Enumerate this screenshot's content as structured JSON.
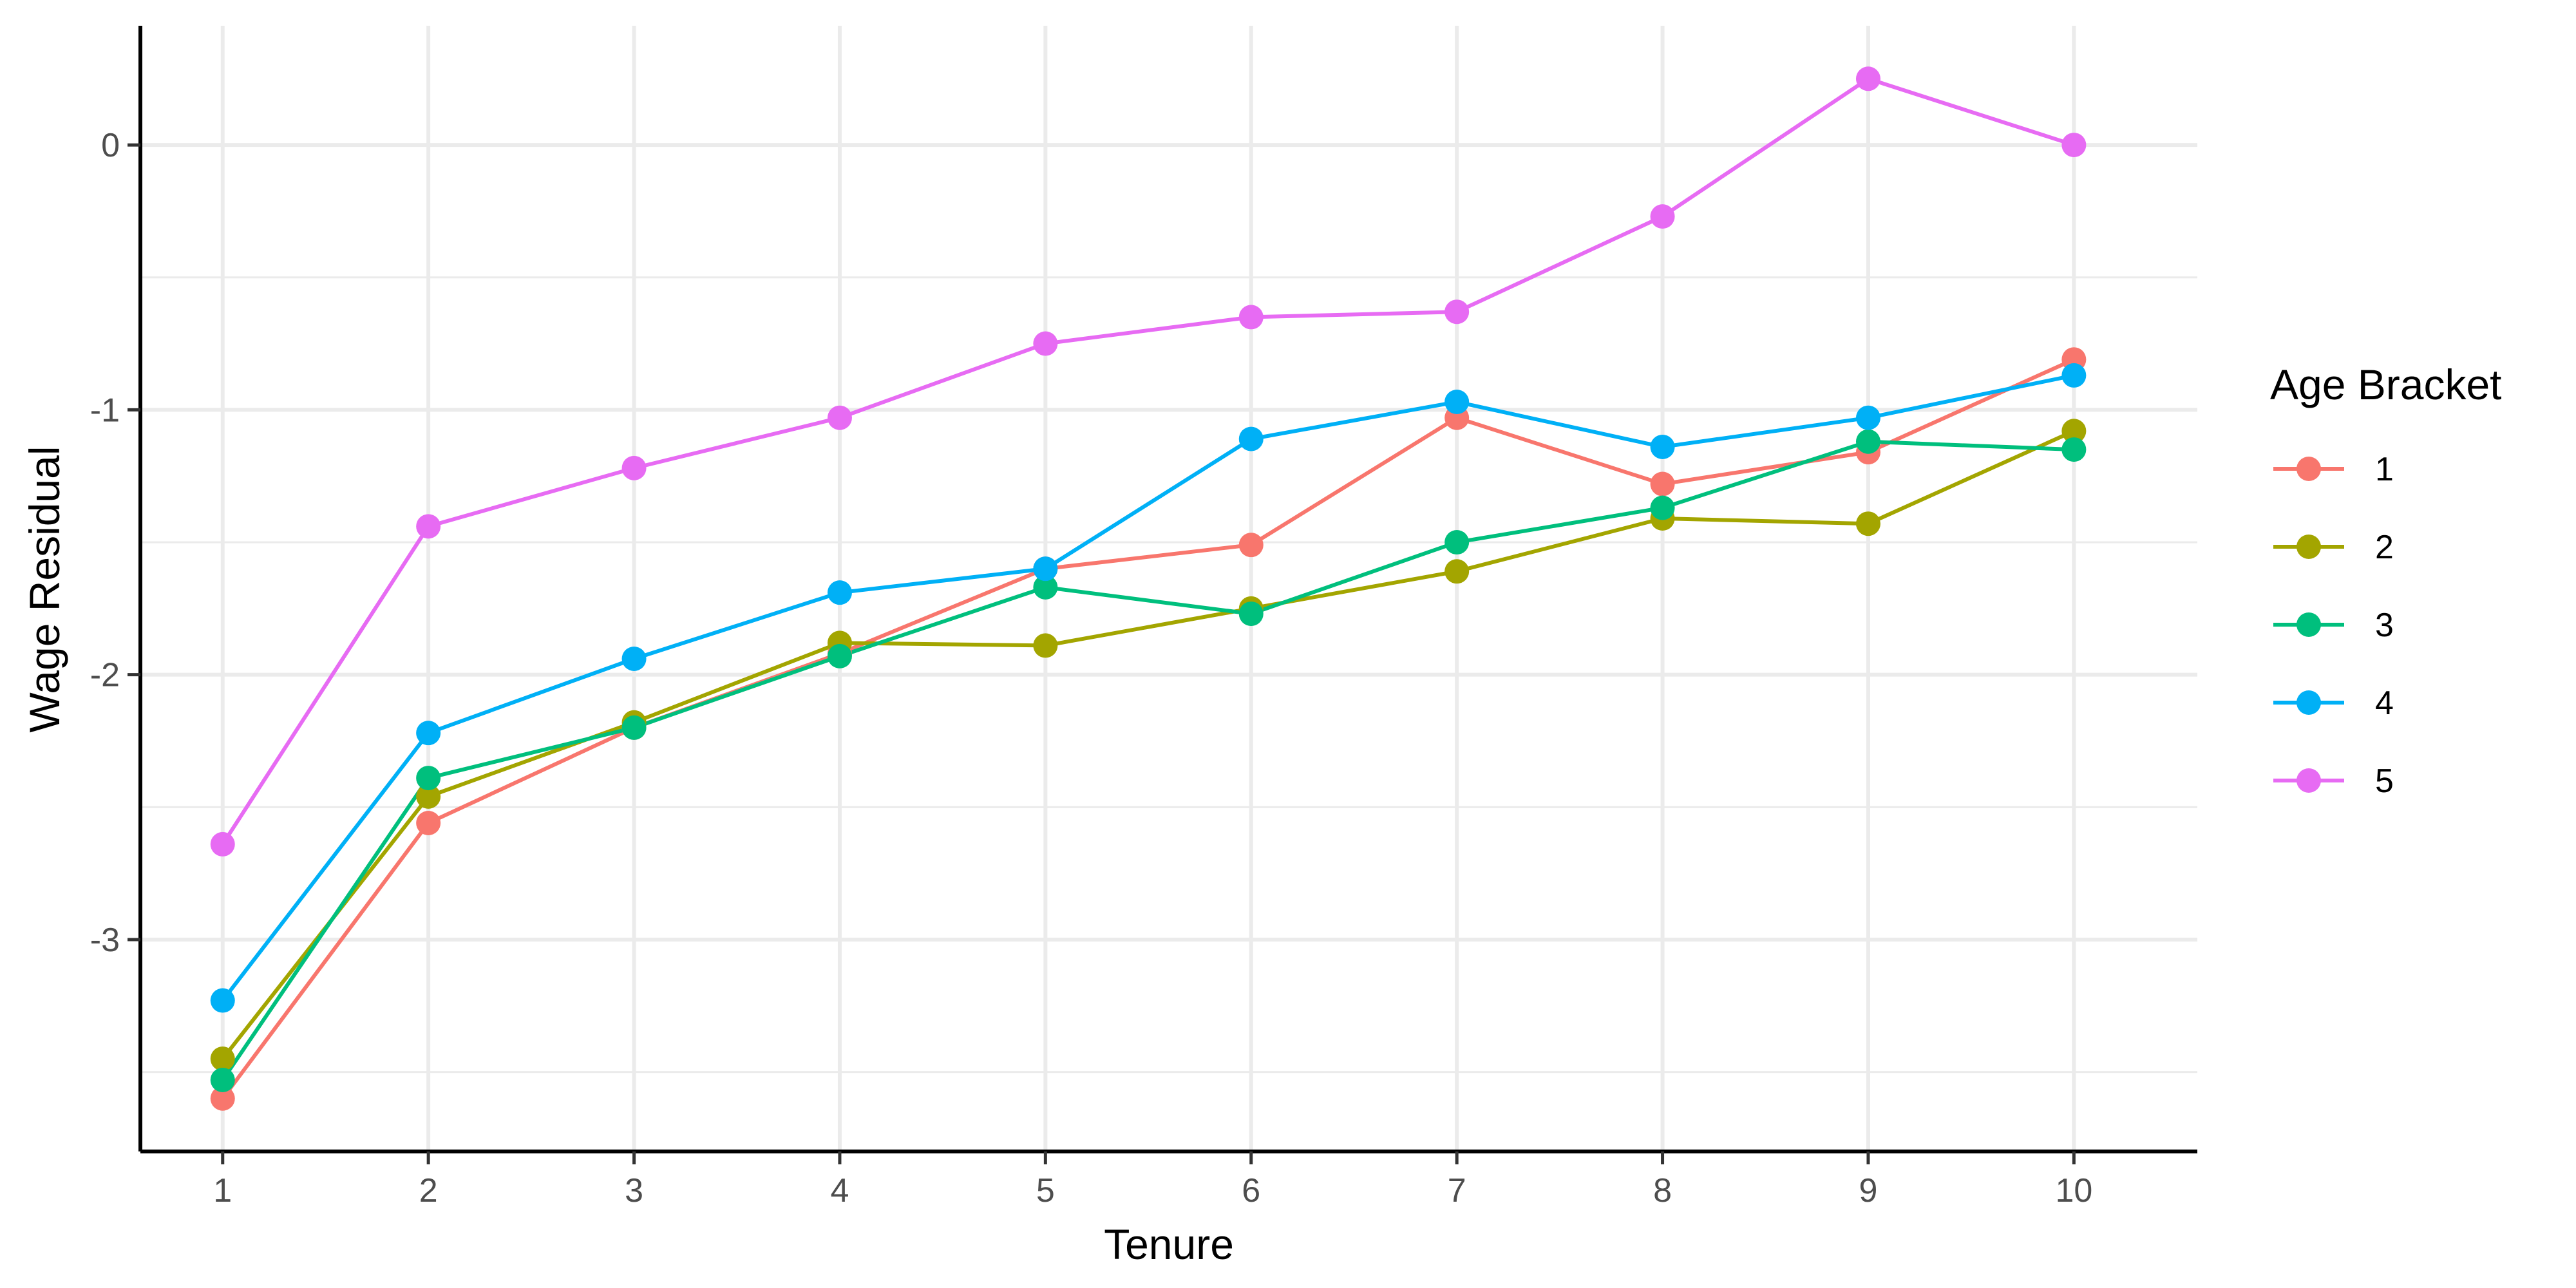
{
  "chart_data": {
    "type": "line",
    "xlabel": "Tenure",
    "ylabel": "Wage Residual",
    "x": [
      1,
      2,
      3,
      4,
      5,
      6,
      7,
      8,
      9,
      10
    ],
    "xlim": [
      0.6,
      10.6
    ],
    "ylim": [
      -3.8,
      0.45
    ],
    "x_ticks": [
      1,
      2,
      3,
      4,
      5,
      6,
      7,
      8,
      9,
      10
    ],
    "y_ticks": [
      -3,
      -2,
      -1,
      0
    ],
    "y_tick_labels": [
      "-3",
      "-2",
      "-1",
      "0"
    ],
    "y_minor_ticks": [
      -3.5,
      -2.5,
      -1.5,
      -0.5
    ],
    "grid": true,
    "legend": {
      "title": "Age Bracket",
      "position": "right"
    },
    "series": [
      {
        "name": "1",
        "color": "#F8766D",
        "values": [
          -3.6,
          -2.56,
          -2.2,
          -1.92,
          -1.6,
          -1.51,
          -1.03,
          -1.28,
          -1.16,
          -0.81
        ]
      },
      {
        "name": "2",
        "color": "#A3A500",
        "values": [
          -3.45,
          -2.46,
          -2.18,
          -1.88,
          -1.89,
          -1.75,
          -1.61,
          -1.41,
          -1.43,
          -1.08
        ]
      },
      {
        "name": "3",
        "color": "#00BF7D",
        "values": [
          -3.53,
          -2.39,
          -2.2,
          -1.93,
          -1.67,
          -1.77,
          -1.5,
          -1.37,
          -1.12,
          -1.15
        ]
      },
      {
        "name": "4",
        "color": "#00B0F6",
        "values": [
          -3.23,
          -2.22,
          -1.94,
          -1.69,
          -1.6,
          -1.11,
          -0.97,
          -1.14,
          -1.03,
          -0.87
        ]
      },
      {
        "name": "5",
        "color": "#E76BF3",
        "values": [
          -2.64,
          -1.44,
          -1.22,
          -1.03,
          -0.75,
          -0.65,
          -0.63,
          -0.27,
          0.25,
          0.0
        ]
      }
    ]
  }
}
